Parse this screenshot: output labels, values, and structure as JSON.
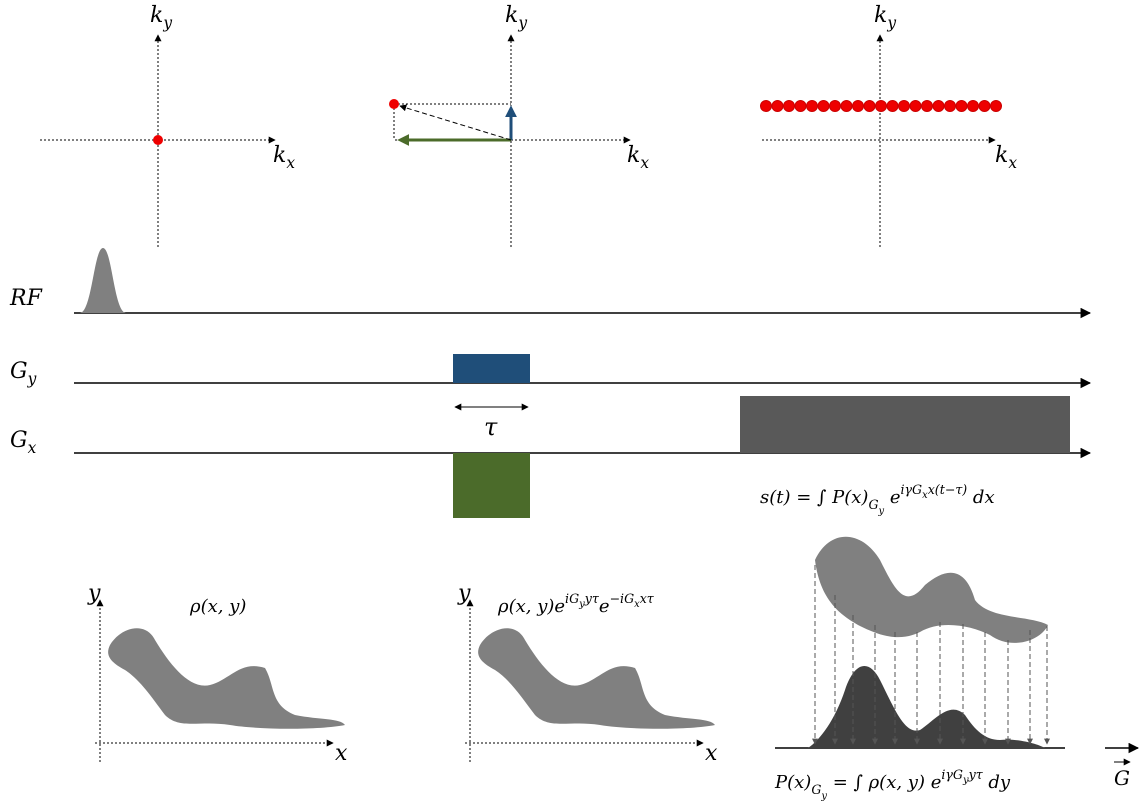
{
  "kspace": [
    {
      "ky": [
        {
          "t": "k"
        },
        {
          "sub": "y"
        }
      ],
      "kx": [
        {
          "t": "k"
        },
        {
          "sub": "x"
        }
      ]
    },
    {
      "ky": [
        {
          "t": "k"
        },
        {
          "sub": "y"
        }
      ],
      "kx": [
        {
          "t": "k"
        },
        {
          "sub": "x"
        }
      ]
    },
    {
      "ky": [
        {
          "t": "k"
        },
        {
          "sub": "y"
        }
      ],
      "kx": [
        {
          "t": "k"
        },
        {
          "sub": "x"
        }
      ]
    }
  ],
  "timing": {
    "rf": [
      {
        "t": "RF"
      }
    ],
    "gy": [
      {
        "t": "G"
      },
      {
        "sub": "y"
      }
    ],
    "gx": [
      {
        "t": "G"
      },
      {
        "sub": "x"
      }
    ],
    "tau": [
      {
        "t": "τ"
      }
    ]
  },
  "signal": [
    {
      "t": "s(t) = ∫ P(x)"
    },
    {
      "sub": "G"
    },
    {
      "ss": "y"
    },
    {
      "t": " e"
    },
    {
      "sup": "iγG"
    },
    {
      "ps": "x"
    },
    {
      "sup": "x(t−τ)"
    },
    {
      "t": " dx"
    }
  ],
  "objects": [
    {
      "y": [
        {
          "t": "y"
        }
      ],
      "x": [
        {
          "t": "x"
        }
      ],
      "expr": [
        {
          "t": "ρ(x, y)"
        }
      ]
    },
    {
      "y": [
        {
          "t": "y"
        }
      ],
      "x": [
        {
          "t": "x"
        }
      ],
      "expr": [
        {
          "t": "ρ(x, y)e"
        },
        {
          "sup": "iG"
        },
        {
          "ps": "y"
        },
        {
          "sup": "yτ"
        },
        {
          "t": "e"
        },
        {
          "sup": "−iG"
        },
        {
          "ps": "x"
        },
        {
          "sup": "xτ"
        }
      ]
    }
  ],
  "projection": [
    {
      "t": "P(x)"
    },
    {
      "sub": "G"
    },
    {
      "ss": "y"
    },
    {
      "t": " = ∫ ρ(x, y) e"
    },
    {
      "sup": "iγG"
    },
    {
      "ps": "y"
    },
    {
      "sup": "yτ"
    },
    {
      "t": " dy"
    }
  ],
  "gradient": [
    {
      "t": "G"
    }
  ]
}
